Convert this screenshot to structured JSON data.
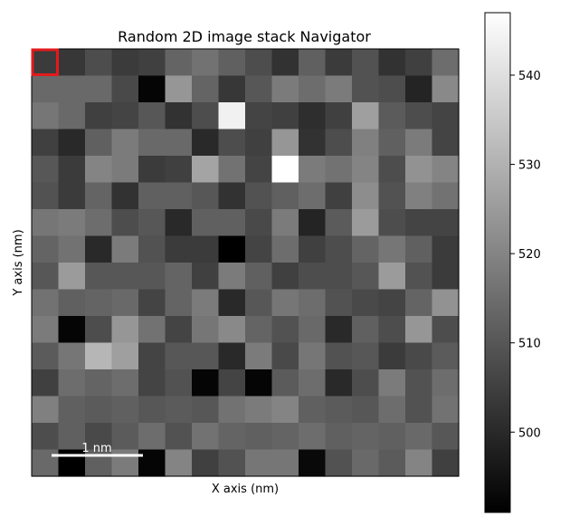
{
  "chart_data": {
    "type": "heatmap",
    "title": "Random 2D image stack Navigator",
    "xlabel": "X axis (nm)",
    "ylabel": "Y axis (nm)",
    "colormap": "gray",
    "grid": false,
    "xticks_visible": false,
    "yticks_visible": false,
    "colorbar": {
      "range": [
        491,
        547
      ],
      "ticks": [
        500,
        510,
        520,
        530,
        540
      ],
      "tick_labels": [
        "500",
        "510",
        "520",
        "530",
        "540"
      ]
    },
    "scalebar": {
      "label": "1 nm",
      "color": "#ffffff",
      "position": "bottom-left"
    },
    "selected_cell": {
      "row": 0,
      "col": 0,
      "color": "#e31a1c"
    },
    "rows": 16,
    "cols": 16,
    "values": [
      [
        504,
        503,
        508,
        504,
        505,
        513,
        516,
        512,
        508,
        502,
        512,
        504,
        509,
        502,
        505,
        515
      ],
      [
        514,
        514,
        514,
        507,
        492,
        524,
        513,
        503,
        510,
        518,
        515,
        518,
        509,
        508,
        499,
        521
      ],
      [
        517,
        514,
        505,
        506,
        510,
        502,
        508,
        544,
        506,
        505,
        501,
        505,
        526,
        511,
        508,
        506
      ],
      [
        505,
        500,
        512,
        518,
        514,
        514,
        500,
        508,
        505,
        524,
        502,
        508,
        519,
        512,
        518,
        506
      ],
      [
        510,
        504,
        520,
        518,
        504,
        505,
        527,
        516,
        506,
        547,
        518,
        516,
        520,
        508,
        523,
        520
      ],
      [
        509,
        504,
        513,
        502,
        512,
        512,
        510,
        502,
        509,
        512,
        515,
        505,
        522,
        509,
        519,
        516
      ],
      [
        517,
        518,
        515,
        508,
        510,
        500,
        512,
        512,
        507,
        518,
        499,
        511,
        525,
        508,
        506,
        506
      ],
      [
        513,
        516,
        500,
        518,
        509,
        504,
        504,
        491,
        506,
        515,
        505,
        508,
        513,
        517,
        512,
        504
      ],
      [
        510,
        525,
        510,
        510,
        510,
        513,
        505,
        518,
        512,
        505,
        508,
        508,
        510,
        525,
        509,
        504
      ],
      [
        516,
        512,
        513,
        514,
        506,
        513,
        518,
        500,
        510,
        517,
        515,
        509,
        507,
        506,
        513,
        523
      ],
      [
        518,
        492,
        508,
        524,
        516,
        506,
        517,
        521,
        513,
        509,
        514,
        500,
        512,
        508,
        524,
        508
      ],
      [
        511,
        517,
        531,
        526,
        506,
        510,
        510,
        500,
        518,
        507,
        517,
        509,
        510,
        504,
        507,
        511
      ],
      [
        505,
        515,
        513,
        515,
        506,
        509,
        492,
        506,
        492,
        511,
        515,
        500,
        508,
        518,
        509,
        515
      ],
      [
        519,
        512,
        511,
        512,
        510,
        511,
        510,
        516,
        518,
        520,
        512,
        511,
        510,
        515,
        509,
        516
      ],
      [
        508,
        512,
        507,
        511,
        515,
        509,
        516,
        513,
        512,
        513,
        515,
        512,
        513,
        512,
        514,
        510
      ],
      [
        514,
        491,
        512,
        518,
        492,
        520,
        505,
        509,
        517,
        517,
        493,
        509,
        514,
        511,
        520,
        505
      ]
    ]
  }
}
